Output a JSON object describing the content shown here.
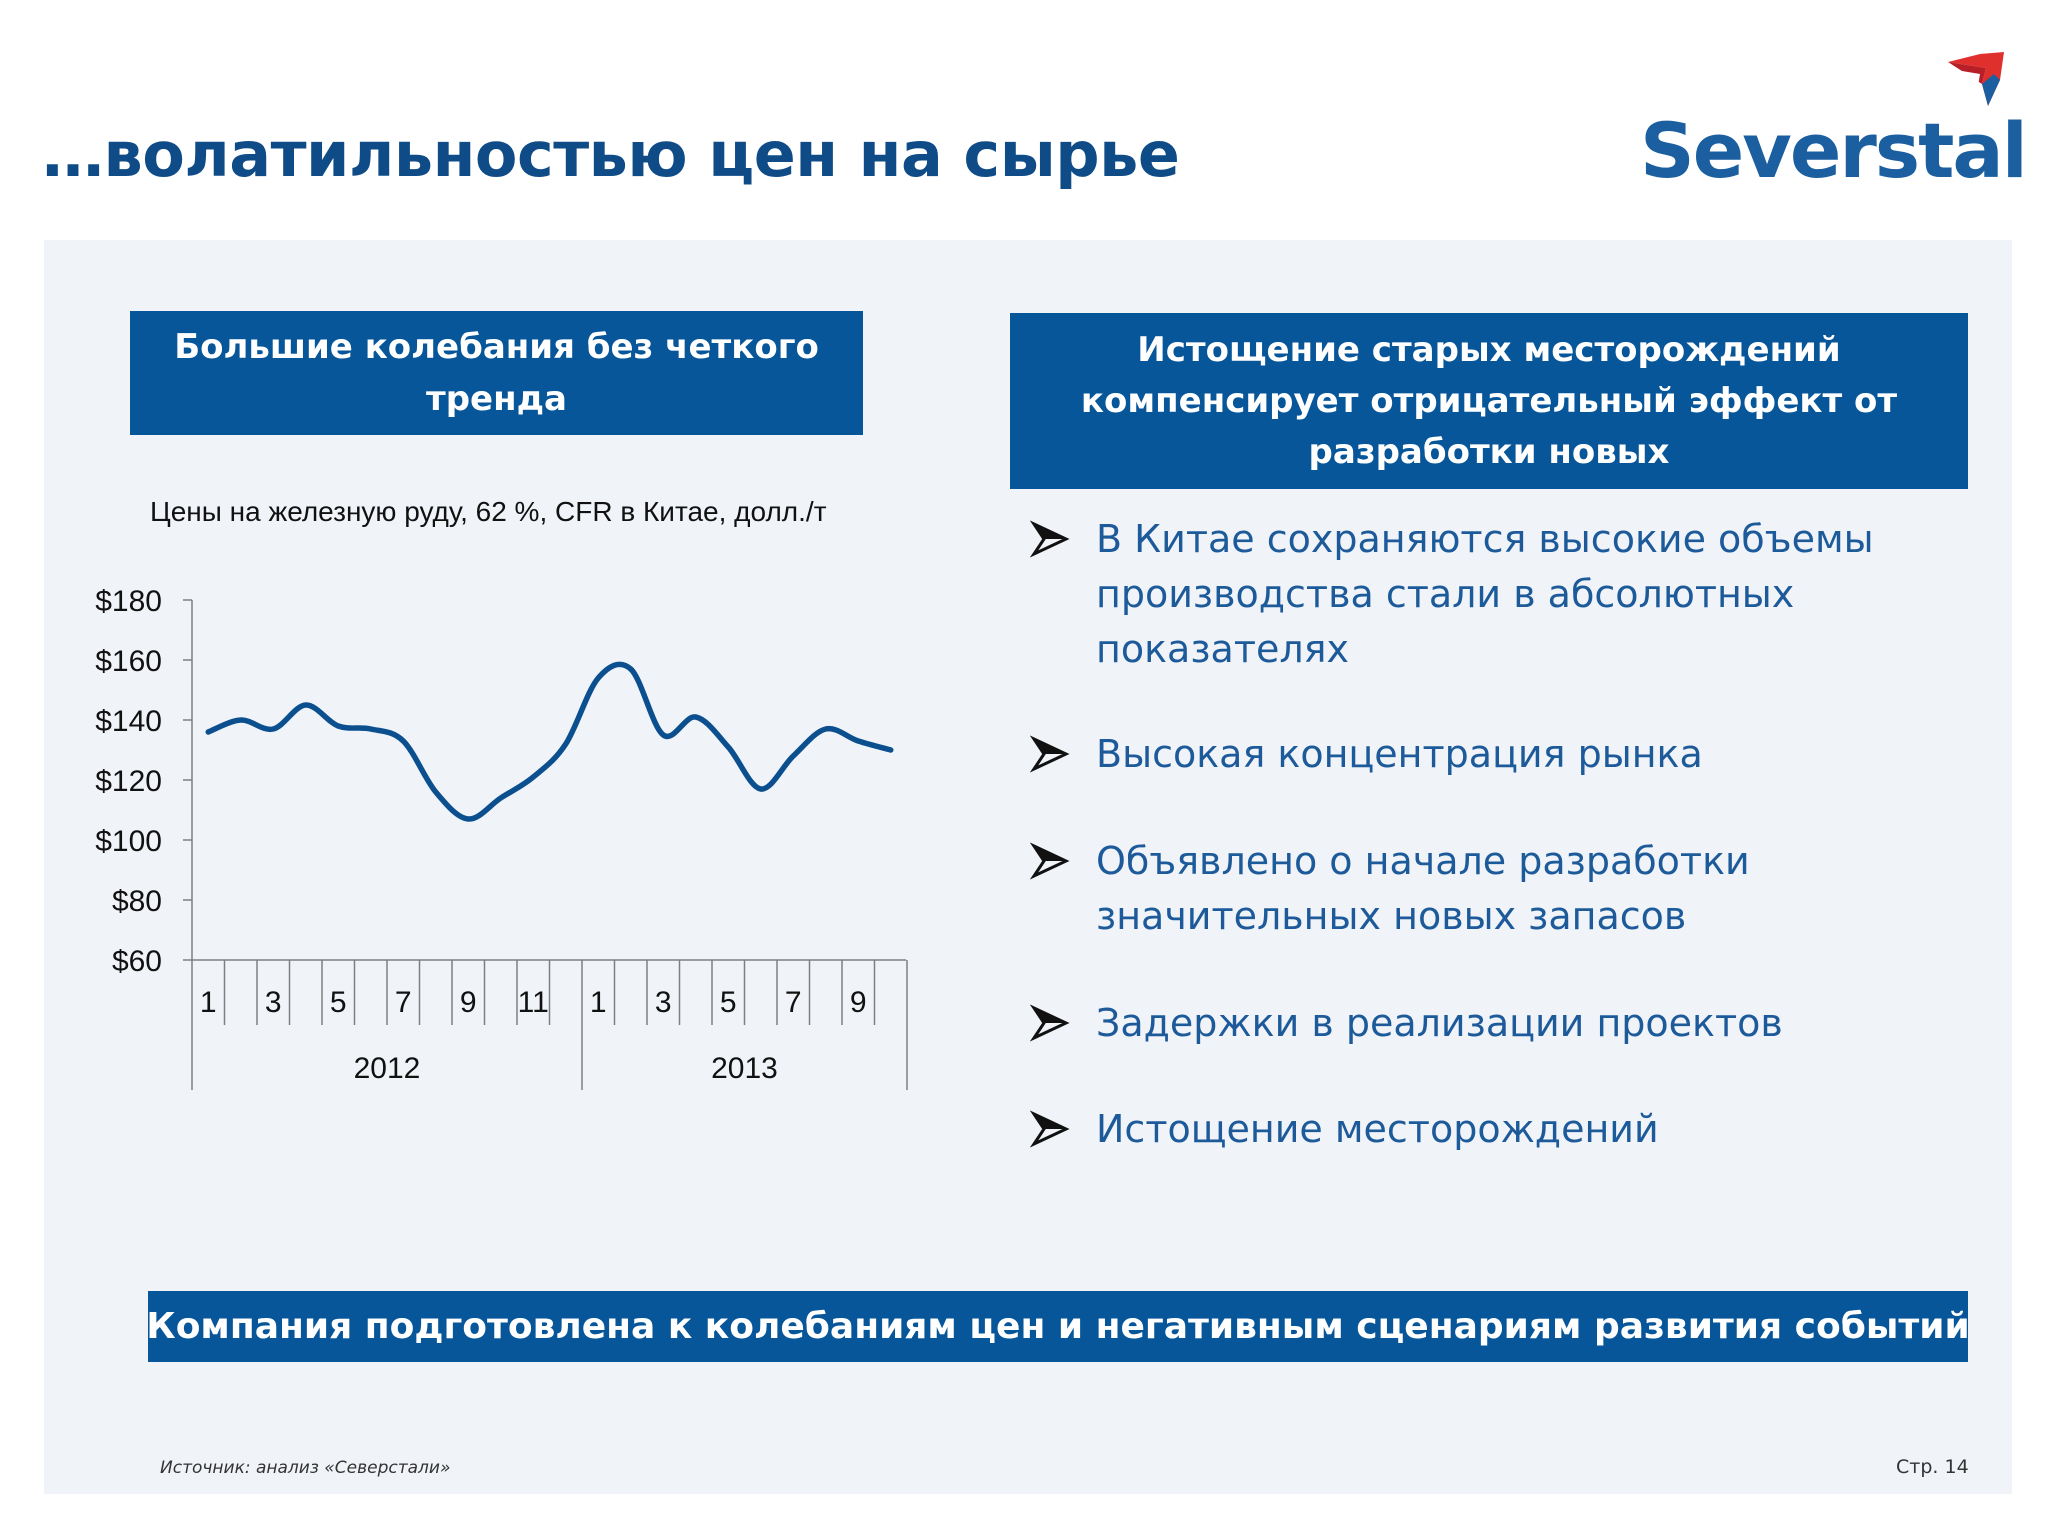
{
  "slide": {
    "title": "…волатильностью цен на сырье",
    "logo_text": "Severstal",
    "left_header": "Большие колебания без четкого тренда",
    "right_header": "Истощение старых месторождений компенсирует отрицательный эффект от разработки новых",
    "bullets": [
      "В Китае сохраняются высокие объемы производства стали в абсолютных показателях",
      "Высокая концентрация рынка",
      "Объявлено о начале разработки значительных новых запасов",
      "Задержки в реализации проектов",
      "Истощение месторождений"
    ],
    "bottom_banner": "Компания подготовлена к колебаниям цен и негативным сценариям развития событий",
    "source": "Источник:  анализ «Северстали»",
    "page": "Стр.  14"
  },
  "colors": {
    "title": "#0f4c87",
    "header_box": "#07569a",
    "bullet_text": "#1d5a9a",
    "line": "#0b4f8f",
    "panel": "#f0f3f8"
  },
  "chart_data": {
    "type": "line",
    "title": "Цены на железную руду, 62 %, CFR в Китае, долл./т",
    "x_month_labels": [
      "1",
      "3",
      "5",
      "7",
      "9",
      "11",
      "1",
      "3",
      "5",
      "7",
      "9"
    ],
    "x_year_labels": [
      "2012",
      "2013"
    ],
    "x_months_per_year": [
      12,
      10
    ],
    "y_tick_labels": [
      "$60",
      "$80",
      "$100",
      "$120",
      "$140",
      "$160",
      "$180"
    ],
    "ylim": [
      60,
      180
    ],
    "series": [
      {
        "values": [
          136,
          140,
          137,
          145,
          138,
          137,
          133,
          116,
          107,
          114,
          121,
          132,
          154,
          157,
          135,
          141,
          131,
          117,
          128,
          137,
          133,
          130
        ]
      }
    ],
    "grid": false,
    "legend": "none"
  }
}
